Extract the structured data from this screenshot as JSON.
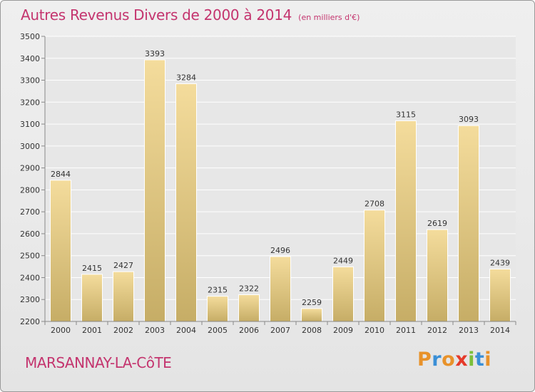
{
  "header": {
    "title": "Autres Revenus Divers de 2000 à 2014",
    "unit": "(en milliers d'€)"
  },
  "footer": {
    "city": "MARSANNAY-LA-CôTE",
    "brand": "Proxiti"
  },
  "colors": {
    "accent": "#c4346e",
    "bar_light": "#f4dc9c",
    "bar_dark": "#c6ad66",
    "brand_letters": [
      "#e8922a",
      "#3a8fd6",
      "#e8922a",
      "#e53a2a",
      "#7bbf3a",
      "#3a8fd6",
      "#e8922a"
    ]
  },
  "chart_data": {
    "type": "bar",
    "title": "Autres Revenus Divers de 2000 à 2014",
    "subtitle": "(en milliers d'€)",
    "xlabel": "",
    "ylabel": "",
    "ylim": [
      2200,
      3500
    ],
    "yticks": [
      2200,
      2300,
      2400,
      2500,
      2600,
      2700,
      2800,
      2900,
      3000,
      3100,
      3200,
      3300,
      3400,
      3500
    ],
    "grid": true,
    "categories": [
      "2000",
      "2001",
      "2002",
      "2003",
      "2004",
      "2005",
      "2006",
      "2007",
      "2008",
      "2009",
      "2010",
      "2011",
      "2012",
      "2013",
      "2014"
    ],
    "values": [
      2844,
      2415,
      2427,
      3393,
      3284,
      2315,
      2322,
      2496,
      2259,
      2449,
      2708,
      3115,
      2619,
      3093,
      2439
    ]
  }
}
